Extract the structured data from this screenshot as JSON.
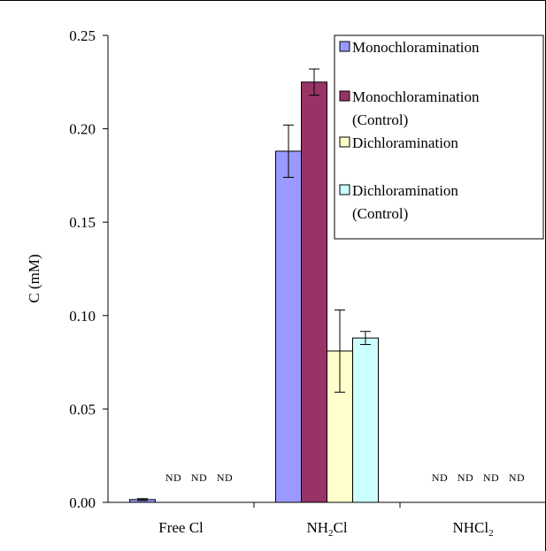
{
  "chart_data": {
    "type": "bar",
    "title": "",
    "ylabel": "C (mM)",
    "xlabel": "",
    "ylim": [
      0,
      0.25
    ],
    "yticks": [
      "0.00",
      "0.05",
      "0.10",
      "0.15",
      "0.20",
      "0.25"
    ],
    "grid": false,
    "legend_position": "top-right",
    "categories": [
      {
        "label": "Free Cl",
        "sub": "",
        "tail": ""
      },
      {
        "label": "NH",
        "sub": "2",
        "tail": "Cl"
      },
      {
        "label": "NHCl",
        "sub": "2",
        "tail": ""
      }
    ],
    "series": [
      {
        "name": "Monochloramination",
        "color": "#9999FF",
        "values": [
          0.0015,
          0.188,
          null
        ],
        "errors": [
          0.0005,
          0.014,
          null
        ],
        "nd_labels": [
          "",
          "",
          "ND"
        ]
      },
      {
        "name": "Monochloramination (Control)",
        "color": "#993366",
        "values": [
          null,
          0.225,
          null
        ],
        "errors": [
          null,
          0.007,
          null
        ],
        "nd_labels": [
          "ND",
          "",
          "ND"
        ]
      },
      {
        "name": "Dichloramination",
        "color": "#FFFFCC",
        "values": [
          null,
          0.081,
          null
        ],
        "errors": [
          null,
          0.022,
          null
        ],
        "nd_labels": [
          "ND",
          "",
          "ND"
        ]
      },
      {
        "name": "Dichloramination (Control)",
        "color": "#CCFFFF",
        "values": [
          null,
          0.088,
          null
        ],
        "errors": [
          null,
          0.0035,
          null
        ],
        "nd_labels": [
          "ND",
          "",
          "ND"
        ]
      }
    ],
    "legend_lines": [
      [
        "Monochloramination"
      ],
      [
        "Monochloramination",
        "(Control)"
      ],
      [
        "Dichloramination"
      ],
      [
        "Dichloramination",
        "(Control)"
      ]
    ]
  }
}
